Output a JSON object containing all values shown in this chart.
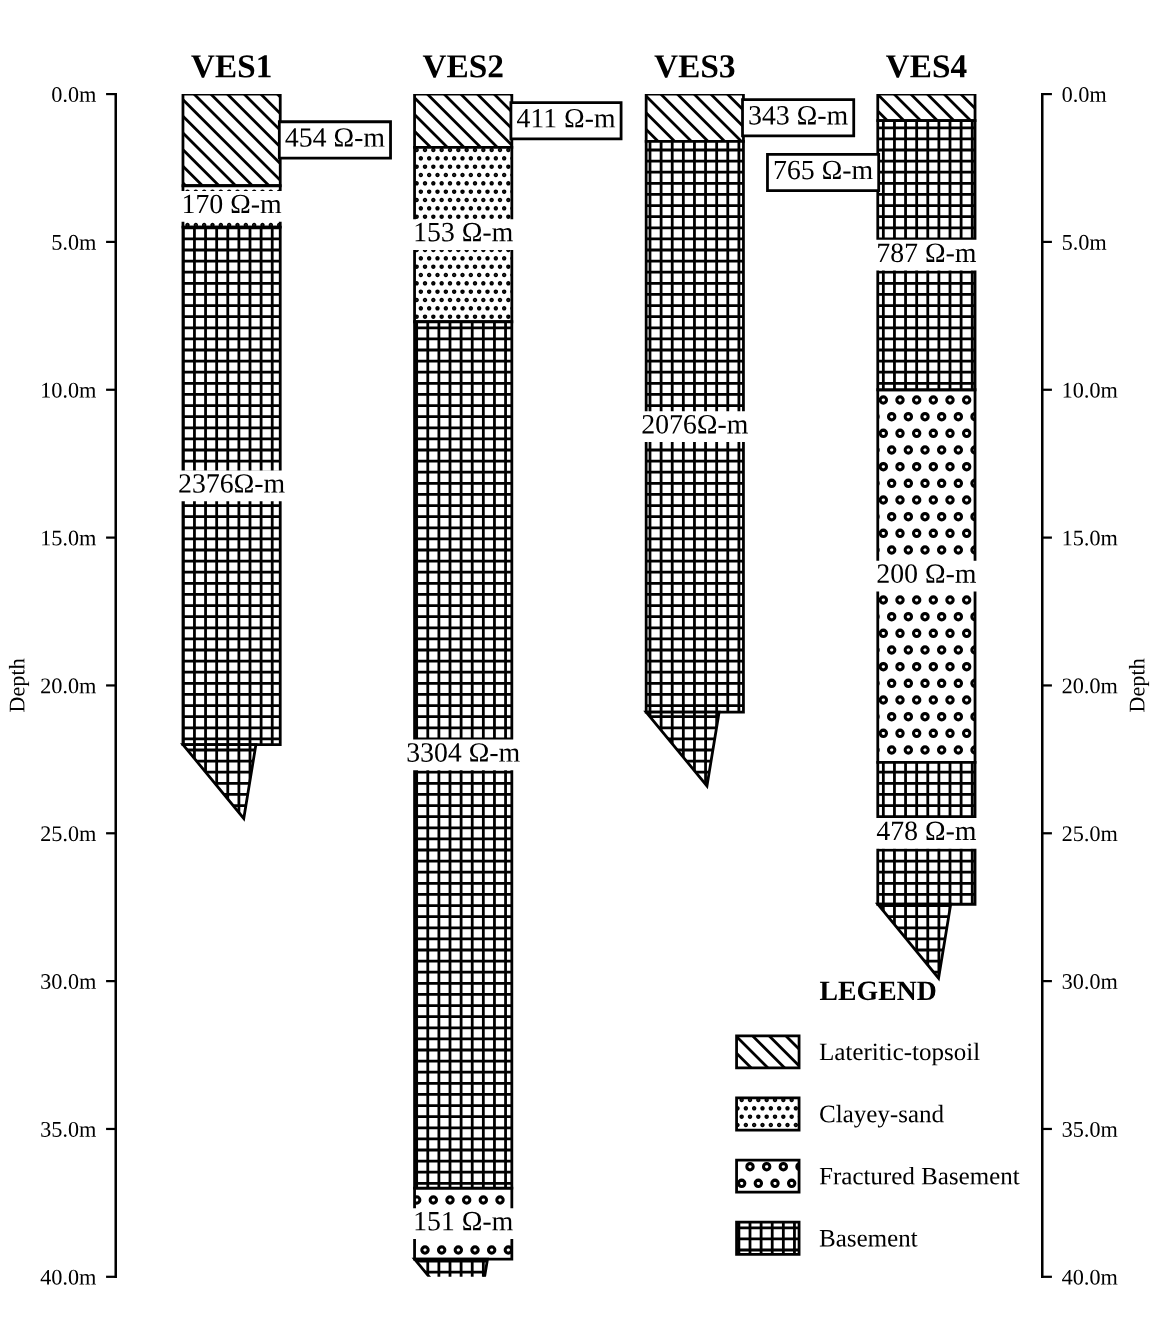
{
  "chart_data": {
    "type": "bar",
    "categories": [
      "VES1",
      "VES2",
      "VES3",
      "VES4"
    ],
    "series": [
      {
        "name": "Lateritic-topsoil",
        "color": "#000000",
        "base": [
          0,
          0,
          0,
          0
        ],
        "values": [
          3.1,
          1.8,
          1.6,
          0.9
        ]
      },
      {
        "name": "Clayey-sand",
        "color": "#000000",
        "base": [
          3.1,
          1.8,
          null,
          null
        ],
        "values": [
          1.4,
          5.9,
          null,
          null
        ]
      },
      {
        "name": "Fractured Basement",
        "color": "#000000",
        "base": [
          null,
          37,
          null,
          10
        ],
        "values": [
          null,
          2.4,
          null,
          12.6
        ]
      },
      {
        "name": "Basement",
        "color": "#000000",
        "base": [
          4.5,
          7.7,
          1.6,
          0.9
        ],
        "values": [
          17.5,
          29.3,
          19.3,
          9.1
        ]
      },
      {
        "color": "#000000",
        "base": [
          null,
          null,
          null,
          22.6
        ],
        "values": [
          null,
          null,
          null,
          4.8
        ]
      }
    ],
    "annotations": [
      "454 Ω-m",
      "411 Ω-m",
      "343 Ω-m",
      "765 Ω-m",
      "170 Ω-m",
      "153 Ω-m",
      "151 Ω-m",
      "200 Ω-m",
      "2376Ω-m",
      "3304 Ω-m",
      "2076Ω-m",
      "787 Ω-m",
      "478 Ω-m"
    ],
    "ylabel": "Depth",
    "y2label": "Depth",
    "legend_title": "LEGEND",
    "legend": "bottom right",
    "grid": false,
    "ylim": [
      40,
      0
    ],
    "yticks": [
      {
        "value": 0,
        "label": "0.0m"
      },
      {
        "value": 5,
        "label": "5.0m"
      },
      {
        "value": 10,
        "label": "10.0m"
      },
      {
        "value": 15,
        "label": "15.0m"
      },
      {
        "value": 20,
        "label": "20.0m"
      },
      {
        "value": 25,
        "label": "25.0m"
      },
      {
        "value": 30,
        "label": "30.0m"
      },
      {
        "value": 35,
        "label": "35.0m"
      },
      {
        "value": 40,
        "label": "40.0m"
      }
    ],
    "y2lim": [
      40,
      0
    ],
    "y2ticks": [
      {
        "value": 0,
        "label": "0.0m"
      },
      {
        "value": 5,
        "label": "5.0m"
      },
      {
        "value": 10,
        "label": "10.0m"
      },
      {
        "value": 15,
        "label": "15.0m"
      },
      {
        "value": 20,
        "label": "20.0m"
      },
      {
        "value": 25,
        "label": "25.0m"
      },
      {
        "value": 30,
        "label": "30.0m"
      },
      {
        "value": 35,
        "label": "35.0m"
      },
      {
        "value": 40,
        "label": "40.0m"
      }
    ]
  }
}
